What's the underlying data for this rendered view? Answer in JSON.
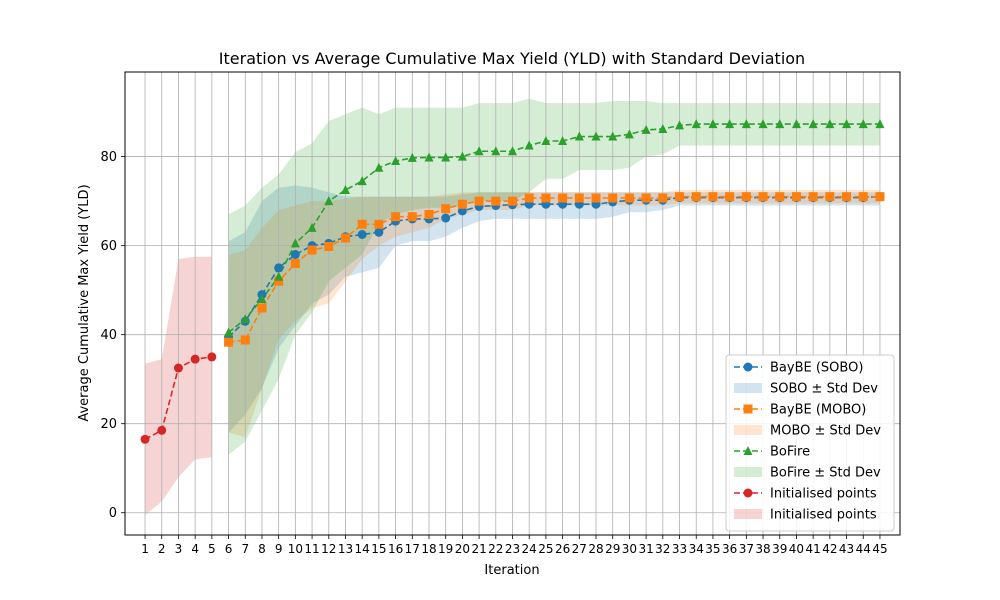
{
  "chart_data": {
    "type": "line",
    "title": "Iteration vs Average Cumulative Max Yield (YLD) with Standard Deviation",
    "xlabel": "Iteration",
    "ylabel": "Average Cumulative Max Yield (YLD)",
    "xlim": [
      -0.2,
      46.2
    ],
    "ylim": [
      -5,
      99
    ],
    "yticks": [
      0,
      20,
      40,
      60,
      80
    ],
    "xticks": [
      1,
      2,
      3,
      4,
      5,
      6,
      7,
      8,
      9,
      10,
      11,
      12,
      13,
      14,
      15,
      16,
      17,
      18,
      19,
      20,
      21,
      22,
      23,
      24,
      25,
      26,
      27,
      28,
      29,
      30,
      31,
      32,
      33,
      34,
      35,
      36,
      37,
      38,
      39,
      40,
      41,
      42,
      43,
      44,
      45
    ],
    "grid": true,
    "legend_position": "lower-right",
    "series": [
      {
        "name": "BayBE (SOBO)",
        "band_name": "SOBO ± Std Dev",
        "color": "#1f77b4",
        "marker": "circle",
        "x": [
          6,
          7,
          8,
          9,
          10,
          11,
          12,
          13,
          14,
          15,
          16,
          17,
          18,
          19,
          20,
          21,
          22,
          23,
          24,
          25,
          26,
          27,
          28,
          29,
          30,
          31,
          32,
          33,
          34,
          35,
          36,
          37,
          38,
          39,
          40,
          41,
          42,
          43,
          44,
          45
        ],
        "values": [
          39.5,
          43,
          49,
          55,
          58,
          60,
          60.5,
          62,
          62.5,
          63,
          65.5,
          66,
          66,
          66.2,
          67.8,
          68.8,
          69,
          69.2,
          69.3,
          69.3,
          69.3,
          69.3,
          69.3,
          69.8,
          70.2,
          70.2,
          70.2,
          70.8,
          70.8,
          70.8,
          70.8,
          70.8,
          70.8,
          70.8,
          70.8,
          70.8,
          70.8,
          70.8,
          70.8,
          71
        ],
        "upper": [
          61,
          63,
          70,
          73,
          73.5,
          73,
          72,
          71,
          71,
          71,
          71,
          71,
          71,
          71,
          71.5,
          72,
          72,
          72,
          72,
          72,
          72,
          72,
          72,
          72,
          72,
          72,
          72,
          72,
          72,
          72,
          72,
          72,
          72,
          72,
          72,
          72,
          72,
          72,
          72,
          72
        ],
        "lower": [
          18,
          22,
          28,
          37,
          42,
          47,
          49,
          53,
          54,
          55,
          60,
          61,
          61,
          62,
          64,
          65.5,
          66,
          66,
          66,
          66,
          66,
          66,
          66,
          66.5,
          67.5,
          67.5,
          68,
          69,
          69,
          69,
          69,
          69,
          69,
          69,
          69,
          69,
          69,
          69,
          69,
          69
        ]
      },
      {
        "name": "BayBE (MOBO)",
        "band_name": "MOBO ± Std Dev",
        "color": "#ff7f0e",
        "marker": "square",
        "x": [
          6,
          7,
          8,
          9,
          10,
          11,
          12,
          13,
          14,
          15,
          16,
          17,
          18,
          19,
          20,
          21,
          22,
          23,
          24,
          25,
          26,
          27,
          28,
          29,
          30,
          31,
          32,
          33,
          34,
          35,
          36,
          37,
          38,
          39,
          40,
          41,
          42,
          43,
          44,
          45
        ],
        "values": [
          38.3,
          38.8,
          46,
          52,
          56,
          59,
          59.8,
          61.7,
          64.8,
          64.8,
          66.5,
          66.5,
          67,
          68.3,
          69.3,
          70,
          70,
          70,
          70.7,
          70.7,
          70.7,
          70.7,
          70.7,
          70.7,
          70.7,
          70.7,
          70.7,
          71,
          71,
          71,
          71,
          71,
          71,
          71,
          71,
          71,
          71,
          71,
          71,
          71
        ],
        "upper": [
          58,
          59,
          64,
          68,
          69,
          70,
          70,
          70.5,
          71,
          71,
          71,
          71,
          71,
          71.5,
          72,
          72,
          72,
          72,
          72,
          72,
          72,
          72,
          72,
          72,
          72,
          72,
          72,
          72.5,
          72.5,
          72.5,
          72.5,
          72.5,
          72.5,
          72.5,
          72.5,
          72.5,
          72.5,
          72.5,
          72.5,
          72.5
        ],
        "lower": [
          18,
          17,
          28,
          39,
          43,
          46,
          47,
          52,
          57,
          60,
          62,
          63,
          64,
          66,
          67,
          68,
          68,
          68,
          69,
          69,
          69,
          69,
          69,
          69,
          69,
          69,
          69,
          69.5,
          69.5,
          69.5,
          69.5,
          69.5,
          69.5,
          69.5,
          69.5,
          69.5,
          69.5,
          69.5,
          69.5,
          69.5
        ]
      },
      {
        "name": "BoFire",
        "band_name": "BoFire ± Std Dev",
        "color": "#2ca02c",
        "marker": "triangle",
        "x": [
          6,
          7,
          8,
          9,
          10,
          11,
          12,
          13,
          14,
          15,
          16,
          17,
          18,
          19,
          20,
          21,
          22,
          23,
          24,
          25,
          26,
          27,
          28,
          29,
          30,
          31,
          32,
          33,
          34,
          35,
          36,
          37,
          38,
          39,
          40,
          41,
          42,
          43,
          44,
          45
        ],
        "values": [
          40.5,
          43.5,
          48,
          53,
          60.5,
          64,
          70,
          72.5,
          74.5,
          77.5,
          79,
          79.7,
          79.8,
          79.8,
          80,
          81.2,
          81.2,
          81.2,
          82.5,
          83.5,
          83.5,
          84.5,
          84.5,
          84.5,
          85,
          86,
          86.2,
          87,
          87.3,
          87.3,
          87.3,
          87.3,
          87.3,
          87.3,
          87.3,
          87.3,
          87.3,
          87.3,
          87.3,
          87.3
        ],
        "upper": [
          67,
          69,
          73,
          76,
          81,
          83,
          88,
          89.5,
          91,
          89.5,
          91,
          91,
          91,
          91,
          91,
          92,
          92,
          92,
          93,
          92,
          92,
          92,
          92,
          92.5,
          92.5,
          92.5,
          92,
          92,
          92,
          92,
          92,
          92,
          92,
          92,
          92,
          92,
          92,
          92,
          92,
          92
        ],
        "lower": [
          13,
          16,
          23,
          30,
          40,
          45,
          52,
          55,
          58,
          65,
          67,
          68,
          68.5,
          68.5,
          69,
          70,
          70,
          70,
          72,
          75,
          75,
          77,
          77,
          77,
          77.5,
          80,
          80.5,
          82.5,
          82.5,
          82.5,
          82.5,
          82.5,
          82.5,
          82.5,
          82.5,
          82.5,
          82.5,
          82.5,
          82.5,
          82.5
        ]
      },
      {
        "name": "Initialised points",
        "band_name": "Initialised points",
        "color": "#d62728",
        "marker": "circle",
        "x": [
          1,
          2,
          3,
          4,
          5
        ],
        "values": [
          16.5,
          18.5,
          32.5,
          34.5,
          35
        ],
        "upper": [
          33.5,
          34.5,
          57,
          57.5,
          57.5
        ],
        "lower": [
          -0.5,
          2.5,
          8,
          12,
          12.5
        ]
      }
    ]
  }
}
